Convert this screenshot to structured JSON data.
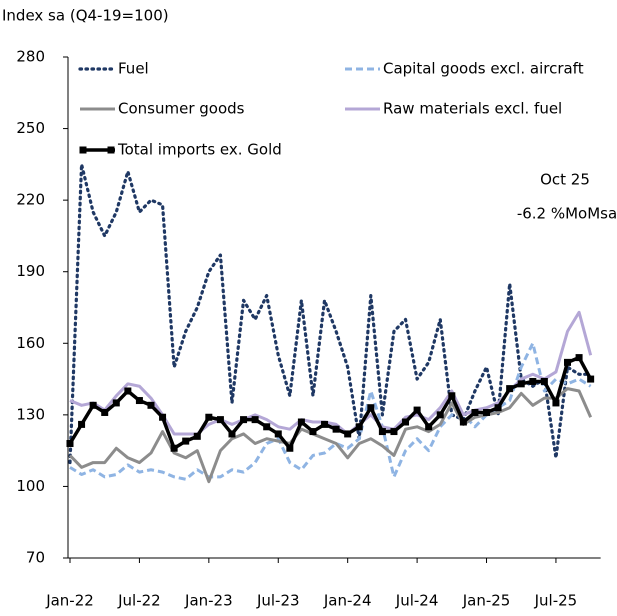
{
  "chart_data": {
    "type": "line",
    "ylabel": "Index sa (Q4-19=100)",
    "annotations": [
      "Oct 25",
      "-6.2 %MoMsa"
    ],
    "categories": [
      "Jan-22",
      null,
      null,
      null,
      null,
      null,
      "Jul-22",
      null,
      null,
      null,
      null,
      null,
      "Jan-23",
      null,
      null,
      null,
      null,
      null,
      "Jul-23",
      null,
      null,
      null,
      null,
      null,
      "Jan-24",
      null,
      null,
      null,
      null,
      null,
      "Jul-24",
      null,
      null,
      null,
      null,
      null,
      "Jan-25",
      null,
      null,
      null,
      null,
      null,
      "Jul-25",
      null,
      null,
      null
    ],
    "ylim": [
      70,
      280
    ],
    "yticks": [
      70,
      100,
      130,
      160,
      190,
      220,
      250,
      280
    ],
    "series": [
      {
        "name": "Fuel",
        "color": "#1f3864",
        "values": [
          110,
          235,
          215,
          205,
          215,
          232,
          215,
          220,
          218,
          150,
          165,
          175,
          190,
          197,
          135,
          178,
          170,
          180,
          155,
          138,
          178,
          138,
          178,
          165,
          150,
          120,
          180,
          130,
          165,
          170,
          145,
          152,
          170,
          130,
          128,
          140,
          150,
          130,
          185,
          145,
          142,
          145,
          112,
          150,
          147,
          147
        ]
      },
      {
        "name": "Capital goods excl. aircraft",
        "color": "#8fb4e3",
        "values": [
          108,
          105,
          107,
          104,
          105,
          109,
          106,
          107,
          106,
          104,
          103,
          107,
          104,
          104,
          107,
          106,
          110,
          118,
          120,
          110,
          107,
          113,
          114,
          118,
          116,
          120,
          140,
          125,
          104,
          115,
          120,
          115,
          125,
          130,
          130,
          125,
          130,
          133,
          136,
          150,
          160,
          140,
          145,
          143,
          145,
          142
        ]
      },
      {
        "name": "Consumer goods",
        "color": "#8c8c8c",
        "values": [
          113,
          108,
          110,
          110,
          116,
          112,
          110,
          114,
          123,
          114,
          112,
          115,
          102,
          115,
          120,
          122,
          118,
          120,
          119,
          118,
          124,
          122,
          120,
          118,
          112,
          118,
          120,
          117,
          113,
          124,
          125,
          123,
          126,
          135,
          126,
          129,
          130,
          131,
          133,
          139,
          134,
          137,
          137,
          141,
          140,
          129
        ]
      },
      {
        "name": "Raw materials excl. fuel",
        "color": "#b4a7d6",
        "values": [
          136,
          134,
          135,
          132,
          138,
          143,
          142,
          137,
          130,
          122,
          122,
          122,
          126,
          128,
          126,
          128,
          130,
          128,
          125,
          124,
          128,
          127,
          127,
          126,
          122,
          126,
          130,
          125,
          124,
          129,
          130,
          128,
          133,
          140,
          130,
          132,
          133,
          135,
          140,
          145,
          147,
          145,
          148,
          165,
          173,
          155
        ]
      },
      {
        "name": "Total imports ex. Gold",
        "color": "#000000",
        "values": [
          118,
          126,
          134,
          131,
          135,
          140,
          136,
          134,
          129,
          116,
          119,
          121,
          129,
          128,
          122,
          128,
          128,
          125,
          122,
          116,
          127,
          123,
          126,
          124,
          122,
          125,
          133,
          123,
          123,
          127,
          132,
          125,
          130,
          138,
          127,
          131,
          131,
          133,
          141,
          143,
          144,
          144,
          135,
          152,
          154,
          145
        ]
      }
    ]
  }
}
